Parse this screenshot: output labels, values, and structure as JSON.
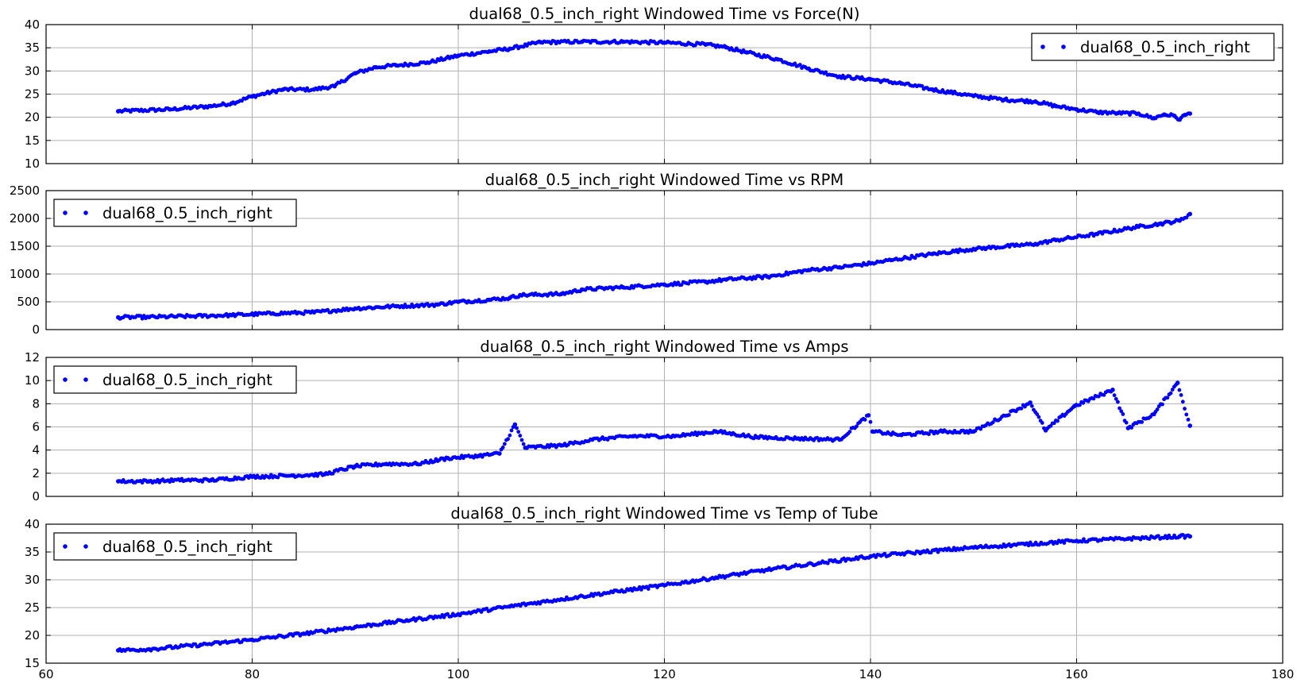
{
  "chart_data": [
    {
      "type": "scatter",
      "title": "dual68_0.5_inch_right Windowed Time vs Force(N)",
      "xlabel": "",
      "ylabel": "",
      "xlim": [
        60,
        180
      ],
      "ylim": [
        10,
        40
      ],
      "yticks": [
        "10",
        "15",
        "20",
        "25",
        "30",
        "35",
        "40"
      ],
      "grid": true,
      "legend_position": "upper-right",
      "series": [
        {
          "name": "dual68_0.5_inch_right",
          "color": "#0000ff",
          "x": [
            67,
            72,
            76,
            78,
            80,
            83,
            86,
            88,
            90,
            92,
            94,
            97,
            100,
            103,
            105,
            108,
            112,
            116,
            120,
            124,
            126,
            128,
            131,
            134,
            137,
            140,
            143,
            146,
            150,
            153,
            156,
            158,
            160,
            162,
            164,
            166,
            167.5,
            168.5,
            169.5,
            170,
            170.5,
            171
          ],
          "y": [
            21.3,
            21.7,
            22.4,
            23,
            24.5,
            26,
            26,
            26.7,
            29.5,
            30.8,
            31.2,
            31.8,
            33.3,
            34.2,
            34.8,
            36.2,
            36.3,
            36.3,
            36.1,
            35.7,
            35.1,
            34,
            32.5,
            30.5,
            28.8,
            28.2,
            27.3,
            26,
            24.6,
            23.8,
            23.4,
            22.4,
            21.7,
            21.1,
            20.9,
            20.8,
            19.8,
            20.6,
            20.3,
            19.5,
            20.5,
            20.8
          ]
        }
      ]
    },
    {
      "type": "scatter",
      "title": "dual68_0.5_inch_right Windowed Time vs RPM",
      "xlabel": "",
      "ylabel": "",
      "xlim": [
        60,
        180
      ],
      "ylim": [
        0,
        2500
      ],
      "yticks": [
        "0",
        "500",
        "1000",
        "1500",
        "2000",
        "2500"
      ],
      "grid": true,
      "legend_position": "upper-left",
      "series": [
        {
          "name": "dual68_0.5_inch_right",
          "color": "#0000ff",
          "x": [
            67,
            70,
            74,
            78,
            82,
            86,
            90,
            94,
            98,
            100,
            103,
            105,
            106,
            110,
            112,
            116,
            120,
            124,
            126,
            130,
            134,
            137,
            140,
            142,
            146,
            150,
            154,
            156,
            158,
            162,
            166,
            168,
            170,
            171
          ],
          "y": [
            220,
            225,
            240,
            260,
            290,
            310,
            380,
            420,
            450,
            500,
            535,
            570,
            620,
            640,
            720,
            760,
            810,
            860,
            900,
            950,
            1070,
            1120,
            1190,
            1250,
            1360,
            1450,
            1510,
            1540,
            1610,
            1720,
            1850,
            1900,
            1960,
            2080
          ]
        }
      ]
    },
    {
      "type": "scatter",
      "title": "dual68_0.5_inch_right Windowed Time vs Amps",
      "xlabel": "",
      "ylabel": "",
      "xlim": [
        60,
        180
      ],
      "ylim": [
        0,
        12
      ],
      "yticks": [
        "0",
        "2",
        "4",
        "6",
        "8",
        "10",
        "12"
      ],
      "grid": true,
      "legend_position": "upper-left",
      "series": [
        {
          "name": "dual68_0.5_inch_right",
          "color": "#0000ff",
          "x": [
            67,
            70,
            73,
            76,
            80,
            84,
            87,
            90,
            93,
            96,
            99,
            102,
            104,
            105.5,
            106.5,
            110,
            113,
            117,
            121,
            125,
            129,
            133,
            137,
            139.8,
            140.2,
            143,
            147,
            150,
            155.5,
            157,
            159.8,
            163.5,
            165,
            167.5,
            169.8,
            171
          ],
          "y": [
            1.3,
            1.3,
            1.4,
            1.4,
            1.7,
            1.8,
            1.9,
            2.6,
            2.8,
            2.8,
            3.3,
            3.5,
            3.7,
            6.2,
            4.2,
            4.4,
            4.9,
            5.2,
            5.2,
            5.6,
            5.1,
            5,
            4.9,
            7,
            5.6,
            5.3,
            5.6,
            5.6,
            8.1,
            5.7,
            7.8,
            9.2,
            5.9,
            7.1,
            9.8,
            6.1
          ]
        }
      ]
    },
    {
      "type": "scatter",
      "title": "dual68_0.5_inch_right Windowed Time vs Temp of Tube",
      "xlabel": "",
      "ylabel": "",
      "xlim": [
        60,
        180
      ],
      "ylim": [
        15,
        40
      ],
      "xticks": [
        "60",
        "80",
        "100",
        "120",
        "140",
        "160",
        "180"
      ],
      "yticks": [
        "15",
        "20",
        "25",
        "30",
        "35",
        "40"
      ],
      "grid": true,
      "legend_position": "upper-left",
      "series": [
        {
          "name": "dual68_0.5_inch_right",
          "color": "#0000ff",
          "x": [
            67,
            70,
            75,
            80,
            85,
            90,
            95,
            100,
            105,
            110,
            115,
            120,
            125,
            130,
            135,
            140,
            145,
            150,
            155,
            160,
            165,
            170,
            171
          ],
          "y": [
            17.3,
            17.5,
            18.3,
            19.2,
            20.3,
            21.5,
            22.7,
            23.8,
            25.2,
            26.5,
            27.8,
            29,
            30.4,
            31.8,
            33,
            34.2,
            35,
            35.8,
            36.4,
            37,
            37.4,
            37.8,
            37.8
          ]
        }
      ]
    }
  ]
}
